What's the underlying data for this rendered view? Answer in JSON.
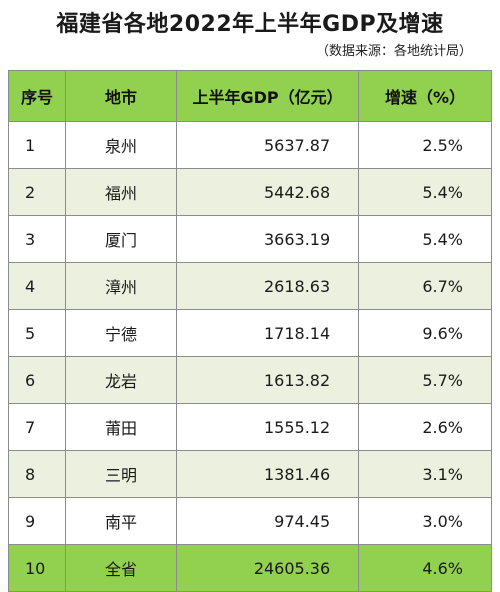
{
  "title": "福建省各地2022年上半年GDP及增速",
  "source": "（数据来源：各地统计局）",
  "header": {
    "index": "序号",
    "city": "地市",
    "gdp": "上半年GDP（亿元）",
    "growth": "增速（%）"
  },
  "rows": [
    {
      "index": "1",
      "city": "泉州",
      "gdp": "5637.87",
      "growth": "2.5%"
    },
    {
      "index": "2",
      "city": "福州",
      "gdp": "5442.68",
      "growth": "5.4%"
    },
    {
      "index": "3",
      "city": "厦门",
      "gdp": "3663.19",
      "growth": "5.4%"
    },
    {
      "index": "4",
      "city": "漳州",
      "gdp": "2618.63",
      "growth": "6.7%"
    },
    {
      "index": "5",
      "city": "宁德",
      "gdp": "1718.14",
      "growth": "9.6%"
    },
    {
      "index": "6",
      "city": "龙岩",
      "gdp": "1613.82",
      "growth": "5.7%"
    },
    {
      "index": "7",
      "city": "莆田",
      "gdp": "1555.12",
      "growth": "2.6%"
    },
    {
      "index": "8",
      "city": "三明",
      "gdp": "1381.46",
      "growth": "3.1%"
    },
    {
      "index": "9",
      "city": "南平",
      "gdp": "974.45",
      "growth": "3.0%"
    }
  ],
  "total": {
    "index": "10",
    "city": "全省",
    "gdp": "24605.36",
    "growth": "4.6%"
  },
  "colors": {
    "header_bg": "#92d050",
    "stripe_bg": "#ebf1de",
    "border": "#8c8c8c"
  }
}
